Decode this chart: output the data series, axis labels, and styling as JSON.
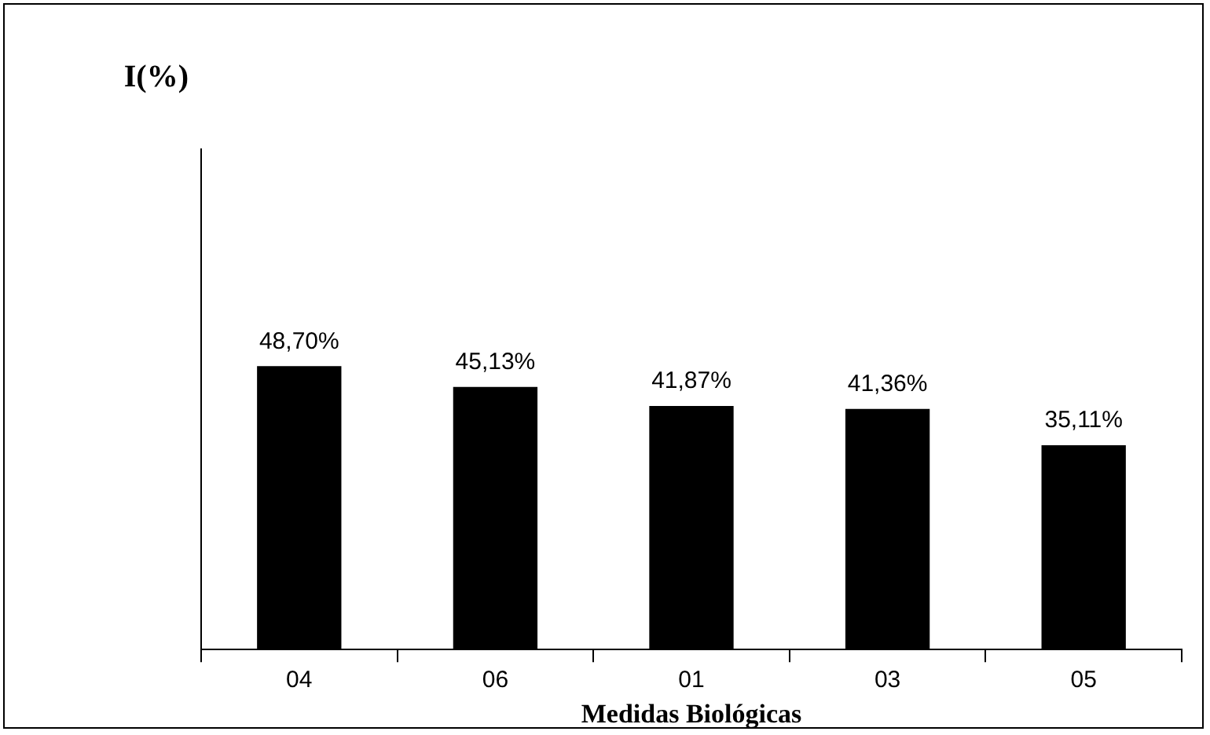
{
  "chart_data": {
    "type": "bar",
    "xlabel": "Medidas Biológicas",
    "ylabel": "I(%)",
    "categories": [
      "04",
      "06",
      "01",
      "03",
      "05"
    ],
    "values": [
      48.7,
      45.13,
      41.87,
      41.36,
      35.11
    ],
    "value_labels": [
      "48,70%",
      "45,13%",
      "41,87%",
      "41,36%",
      "35,11%"
    ],
    "color": "#000000",
    "ylim": [
      0,
      86
    ],
    "tick_labels": "x",
    "grid": false,
    "legend": false
  }
}
